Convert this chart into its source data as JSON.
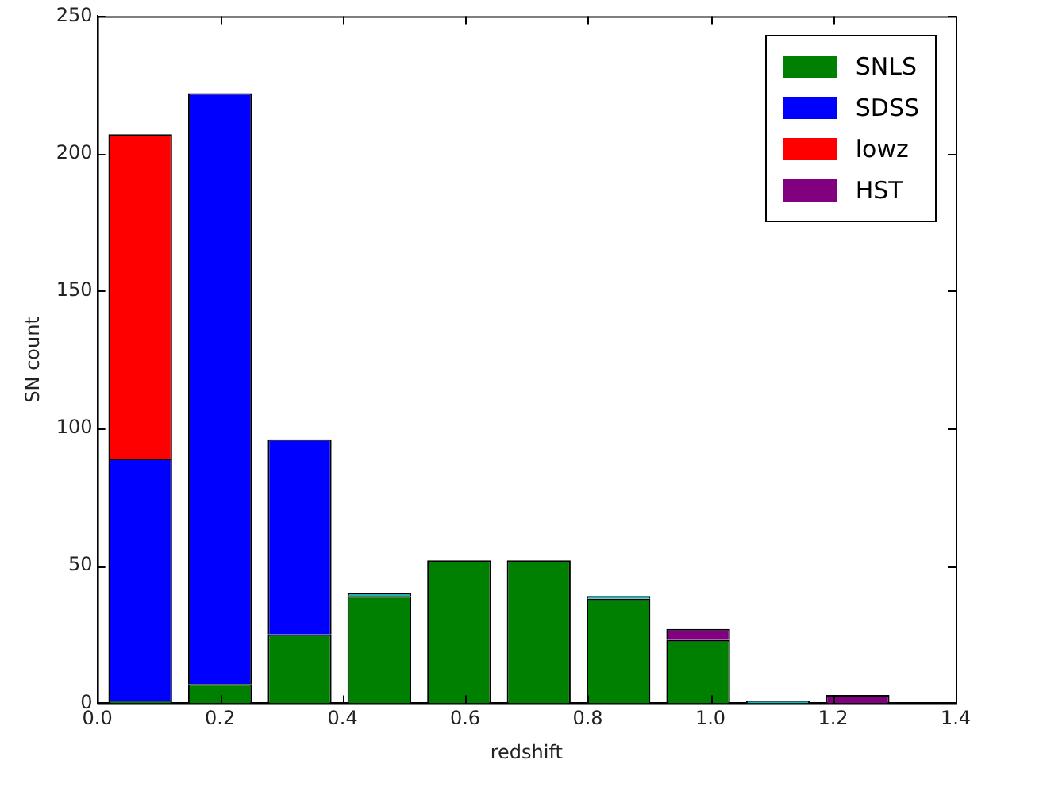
{
  "chart_data": {
    "type": "bar",
    "xlabel": "redshift",
    "ylabel": "SN count",
    "x": [
      0.07,
      0.2,
      0.33,
      0.46,
      0.59,
      0.72,
      0.85,
      0.98,
      1.11,
      1.24
    ],
    "stacked": true,
    "series": [
      {
        "name": "SNLS",
        "color": "#008000",
        "values": [
          1,
          7,
          25,
          39,
          52,
          52,
          38,
          23,
          0,
          0
        ]
      },
      {
        "name": "SDSS",
        "color": "#0000ff",
        "values": [
          88,
          215,
          71,
          0,
          0,
          0,
          0,
          0,
          0,
          0
        ]
      },
      {
        "name": "lowz",
        "color": "#ff0000",
        "values": [
          118,
          0,
          0,
          0,
          0,
          0,
          0,
          0,
          0,
          0
        ]
      },
      {
        "name": "HST",
        "color": "#800080",
        "values": [
          0,
          0,
          0,
          0,
          0,
          0,
          0,
          4,
          0,
          3
        ]
      },
      {
        "color": "#00bfbf",
        "values": [
          0,
          0,
          0,
          1,
          0,
          0,
          1,
          0,
          1,
          0
        ]
      }
    ],
    "xlim": [
      0,
      1.4
    ],
    "xticks": [
      {
        "value": 0,
        "label": "0.0"
      },
      0.2,
      0.4,
      0.6,
      0.8,
      {
        "value": 1,
        "label": "1.0"
      },
      1.2,
      1.4
    ],
    "ylim": [
      0,
      250
    ],
    "yticks": [
      0,
      50,
      100,
      150,
      200,
      250
    ],
    "grid": false,
    "legend": "top right"
  }
}
